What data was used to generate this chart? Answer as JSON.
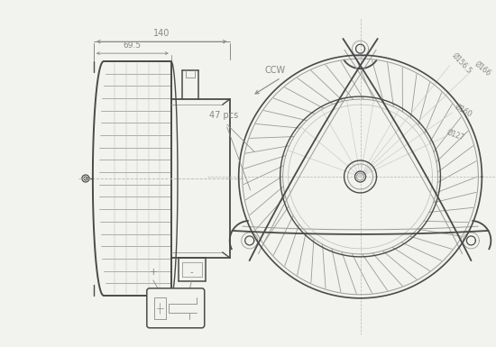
{
  "bg_color": "#f2f2ee",
  "lc": "#4a4a4a",
  "dc": "#888888",
  "dac": "#bbbbbb",
  "gc": "#999999",
  "dim_140": "140",
  "dim_695": "69.5",
  "dim_1565": "Ø156.5",
  "dim_166": "Ø166",
  "dim_160": "Ø160",
  "dim_127": "Ø127",
  "lbl_47pcs": "47 pcs",
  "lbl_ccw": "CCW",
  "lbl_plus": "+",
  "lbl_minus": "-"
}
